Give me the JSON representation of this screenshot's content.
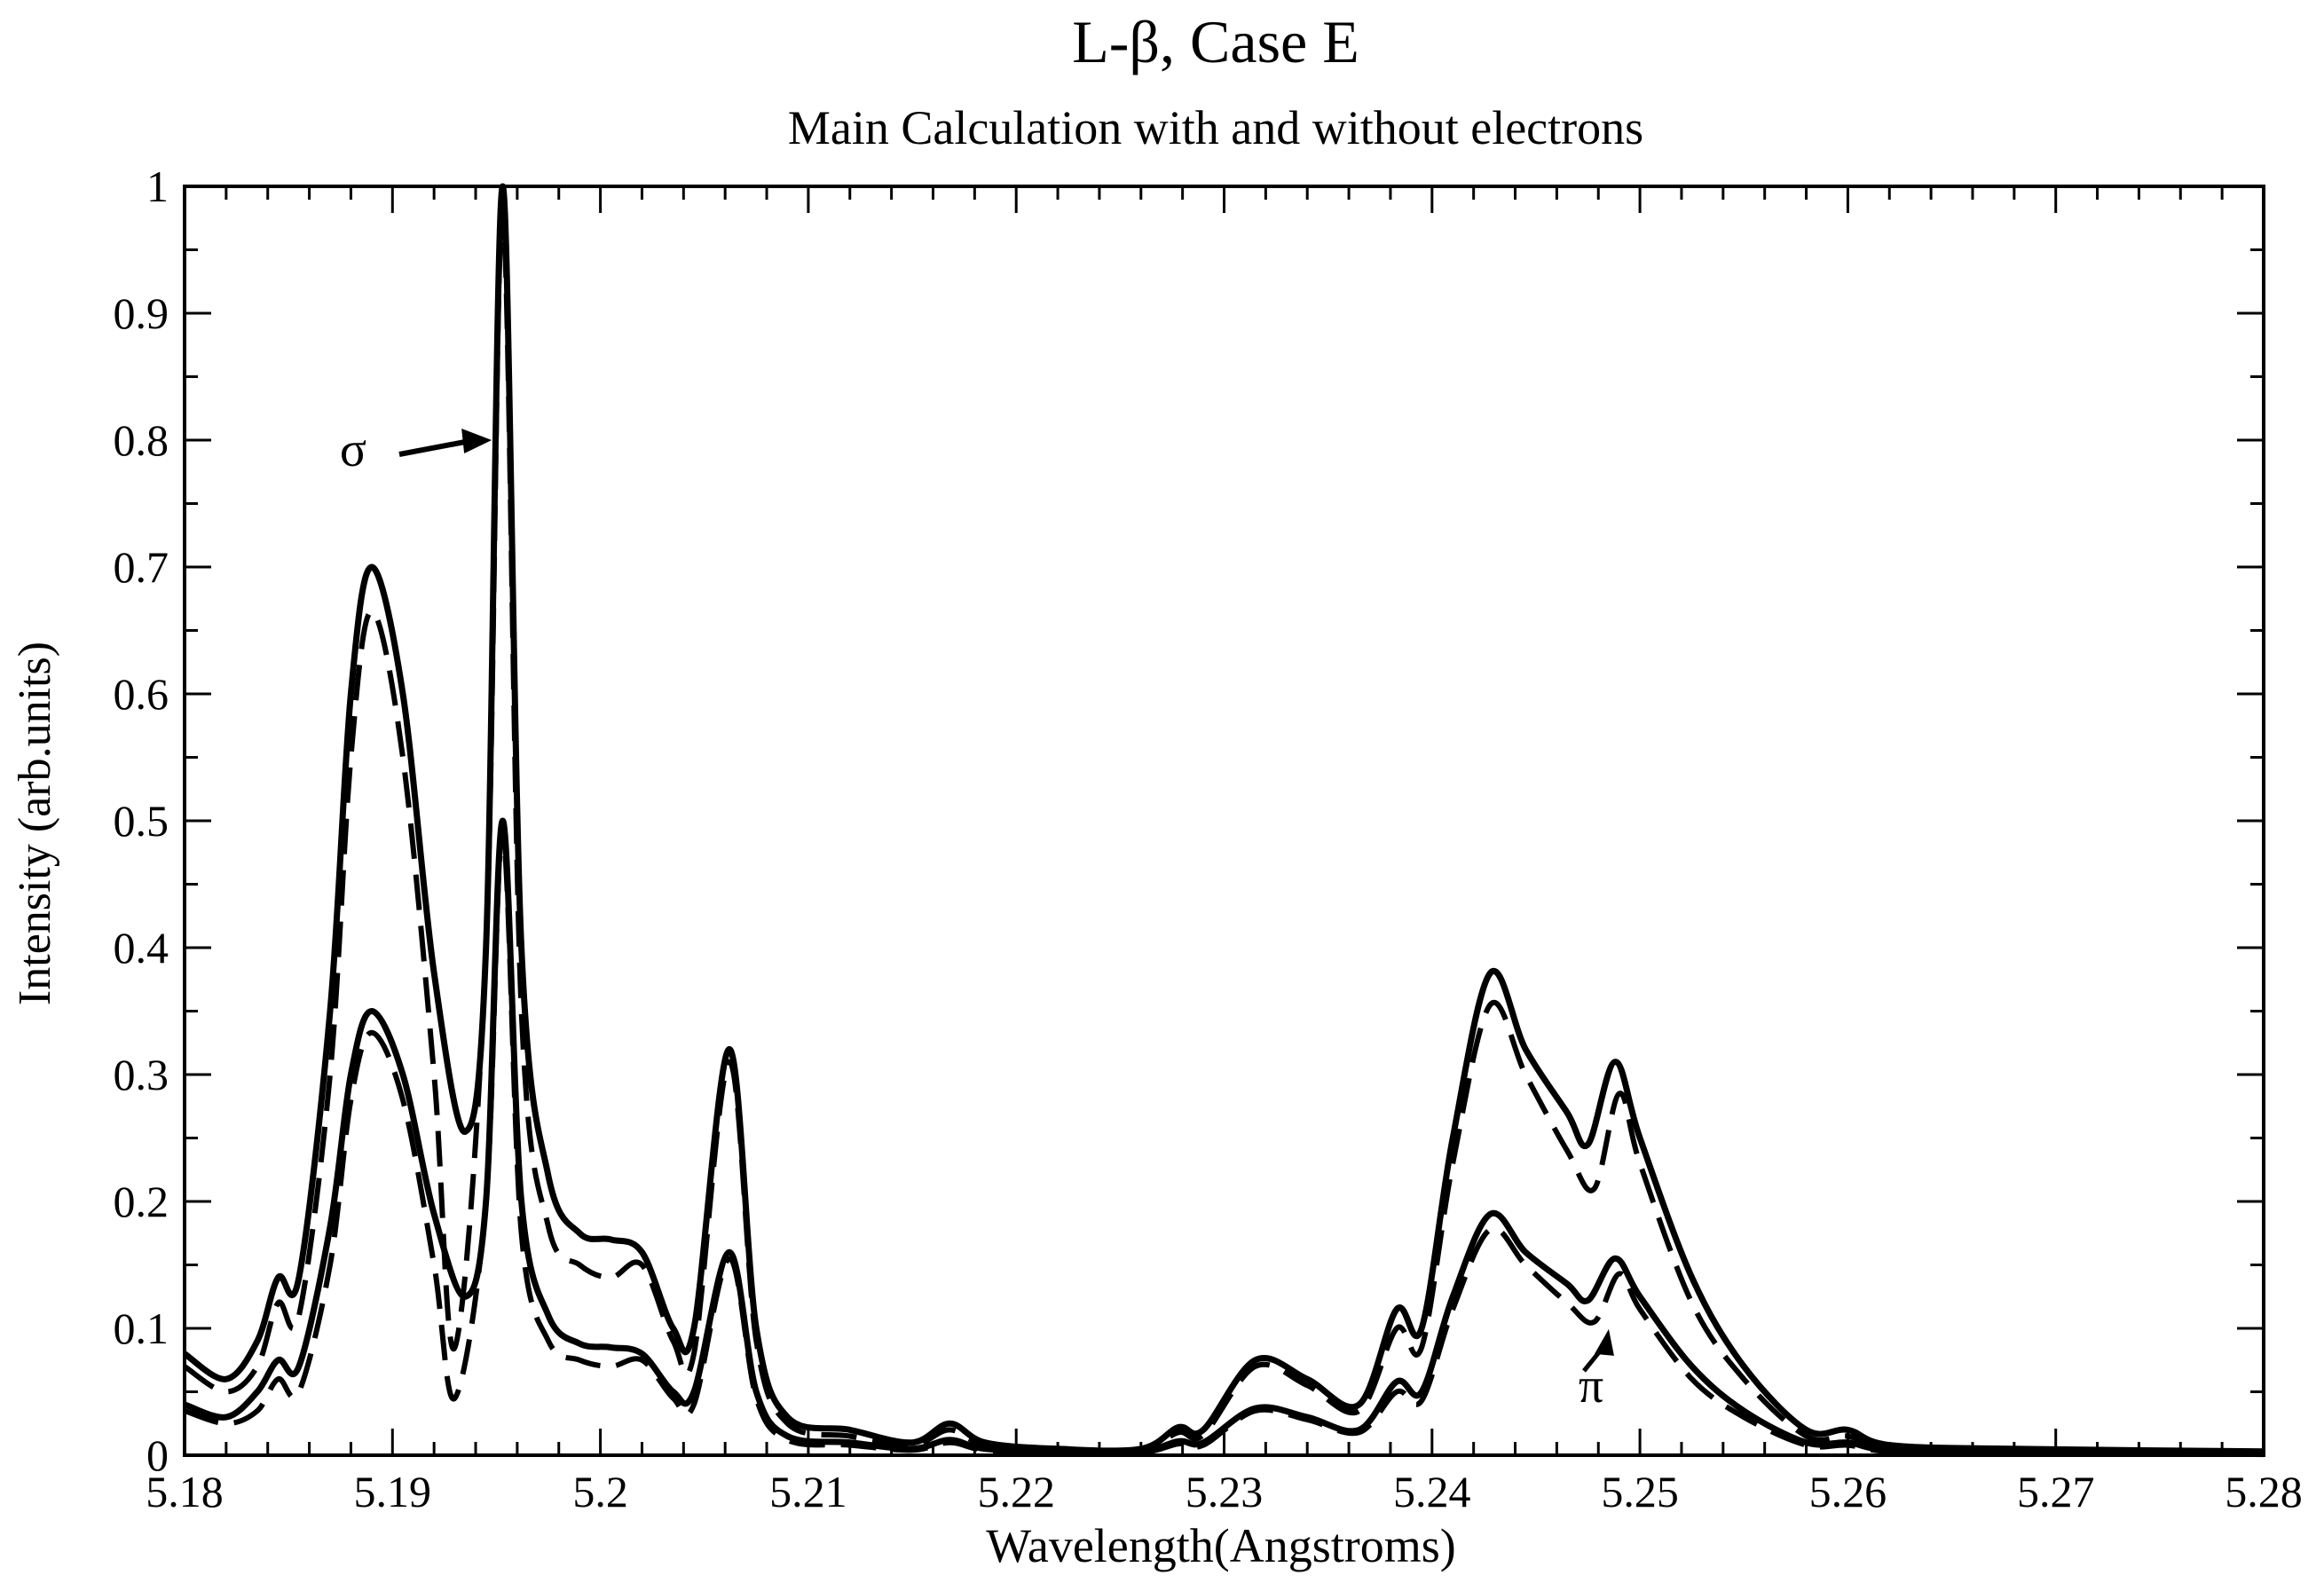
{
  "chart_data": {
    "type": "line",
    "title": "L-β,  Case E",
    "subtitle": "Main Calculation with and without electrons",
    "xlabel": "Wavelength(Angstroms)",
    "ylabel": "Intensity (arb.units)",
    "xlim": [
      5.18,
      5.28
    ],
    "ylim": [
      0,
      1
    ],
    "xticks": [
      5.18,
      5.19,
      5.2,
      5.21,
      5.22,
      5.23,
      5.24,
      5.25,
      5.26,
      5.27,
      5.28
    ],
    "xtick_labels": [
      "5.18",
      "5.19",
      "5.2",
      "5.21",
      "5.22",
      "5.23",
      "5.24",
      "5.25",
      "5.26",
      "5.27",
      "5.28"
    ],
    "yticks": [
      0,
      0.1,
      0.2,
      0.3,
      0.4,
      0.5,
      0.6,
      0.7,
      0.8,
      0.9,
      1
    ],
    "ytick_labels": [
      "0",
      "0.1",
      "0.2",
      "0.3",
      "0.4",
      "0.5",
      "0.6",
      "0.7",
      "0.8",
      "0.9",
      "1"
    ],
    "grid": false,
    "legend": "none",
    "annotations": [
      {
        "text": "σ",
        "points_to": [
          5.1952,
          0.8
        ]
      },
      {
        "text": "π",
        "points_to": [
          5.2485,
          0.105
        ]
      }
    ],
    "series": [
      {
        "style": "solid",
        "points": [
          [
            5.18,
            0.08
          ],
          [
            5.182,
            0.06
          ],
          [
            5.1835,
            0.09
          ],
          [
            5.1845,
            0.14
          ],
          [
            5.1855,
            0.14
          ],
          [
            5.187,
            0.35
          ],
          [
            5.188,
            0.6
          ],
          [
            5.189,
            0.7
          ],
          [
            5.1905,
            0.6
          ],
          [
            5.192,
            0.38
          ],
          [
            5.1935,
            0.255
          ],
          [
            5.1945,
            0.4
          ],
          [
            5.1953,
            1.0
          ],
          [
            5.1962,
            0.4
          ],
          [
            5.1975,
            0.22
          ],
          [
            5.199,
            0.175
          ],
          [
            5.2005,
            0.17
          ],
          [
            5.202,
            0.16
          ],
          [
            5.2035,
            0.1
          ],
          [
            5.2045,
            0.1
          ],
          [
            5.2062,
            0.32
          ],
          [
            5.2075,
            0.1
          ],
          [
            5.209,
            0.03
          ],
          [
            5.212,
            0.02
          ],
          [
            5.215,
            0.01
          ],
          [
            5.2168,
            0.025
          ],
          [
            5.2185,
            0.01
          ],
          [
            5.222,
            0.005
          ],
          [
            5.226,
            0.005
          ],
          [
            5.2278,
            0.022
          ],
          [
            5.229,
            0.02
          ],
          [
            5.2315,
            0.075
          ],
          [
            5.234,
            0.06
          ],
          [
            5.2365,
            0.04
          ],
          [
            5.2383,
            0.115
          ],
          [
            5.2395,
            0.1
          ],
          [
            5.241,
            0.25
          ],
          [
            5.2428,
            0.38
          ],
          [
            5.2445,
            0.32
          ],
          [
            5.2465,
            0.27
          ],
          [
            5.2475,
            0.245
          ],
          [
            5.2488,
            0.31
          ],
          [
            5.25,
            0.25
          ],
          [
            5.2525,
            0.14
          ],
          [
            5.255,
            0.07
          ],
          [
            5.258,
            0.02
          ],
          [
            5.26,
            0.02
          ],
          [
            5.262,
            0.008
          ],
          [
            5.268,
            0.005
          ],
          [
            5.28,
            0.003
          ]
        ]
      },
      {
        "style": "dashed",
        "points": [
          [
            5.18,
            0.07
          ],
          [
            5.182,
            0.05
          ],
          [
            5.1835,
            0.07
          ],
          [
            5.1845,
            0.12
          ],
          [
            5.1855,
            0.11
          ],
          [
            5.187,
            0.3
          ],
          [
            5.188,
            0.55
          ],
          [
            5.189,
            0.665
          ],
          [
            5.1905,
            0.55
          ],
          [
            5.192,
            0.3
          ],
          [
            5.193,
            0.085
          ],
          [
            5.1945,
            0.4
          ],
          [
            5.1953,
            0.98
          ],
          [
            5.1962,
            0.35
          ],
          [
            5.1975,
            0.18
          ],
          [
            5.199,
            0.15
          ],
          [
            5.2005,
            0.14
          ],
          [
            5.202,
            0.15
          ],
          [
            5.2035,
            0.09
          ],
          [
            5.2045,
            0.08
          ],
          [
            5.2062,
            0.31
          ],
          [
            5.2075,
            0.09
          ],
          [
            5.209,
            0.025
          ],
          [
            5.212,
            0.015
          ],
          [
            5.215,
            0.008
          ],
          [
            5.2168,
            0.02
          ],
          [
            5.2185,
            0.008
          ],
          [
            5.222,
            0.004
          ],
          [
            5.226,
            0.004
          ],
          [
            5.2278,
            0.018
          ],
          [
            5.229,
            0.016
          ],
          [
            5.2315,
            0.07
          ],
          [
            5.234,
            0.055
          ],
          [
            5.2365,
            0.035
          ],
          [
            5.2383,
            0.1
          ],
          [
            5.2395,
            0.085
          ],
          [
            5.241,
            0.23
          ],
          [
            5.2428,
            0.355
          ],
          [
            5.2445,
            0.3
          ],
          [
            5.2465,
            0.24
          ],
          [
            5.2478,
            0.21
          ],
          [
            5.249,
            0.285
          ],
          [
            5.25,
            0.23
          ],
          [
            5.2525,
            0.12
          ],
          [
            5.255,
            0.06
          ],
          [
            5.258,
            0.015
          ],
          [
            5.26,
            0.015
          ],
          [
            5.262,
            0.006
          ],
          [
            5.268,
            0.004
          ],
          [
            5.28,
            0.002
          ]
        ]
      },
      {
        "style": "solid",
        "points": [
          [
            5.18,
            0.04
          ],
          [
            5.182,
            0.03
          ],
          [
            5.1835,
            0.05
          ],
          [
            5.1845,
            0.075
          ],
          [
            5.1855,
            0.07
          ],
          [
            5.187,
            0.18
          ],
          [
            5.188,
            0.3
          ],
          [
            5.189,
            0.35
          ],
          [
            5.1905,
            0.3
          ],
          [
            5.192,
            0.19
          ],
          [
            5.1935,
            0.125
          ],
          [
            5.1945,
            0.2
          ],
          [
            5.1953,
            0.5
          ],
          [
            5.1962,
            0.2
          ],
          [
            5.1975,
            0.11
          ],
          [
            5.199,
            0.088
          ],
          [
            5.2005,
            0.085
          ],
          [
            5.202,
            0.08
          ],
          [
            5.2035,
            0.05
          ],
          [
            5.2045,
            0.05
          ],
          [
            5.2062,
            0.16
          ],
          [
            5.2075,
            0.05
          ],
          [
            5.209,
            0.015
          ],
          [
            5.212,
            0.01
          ],
          [
            5.215,
            0.005
          ],
          [
            5.2168,
            0.012
          ],
          [
            5.2185,
            0.005
          ],
          [
            5.222,
            0.003
          ],
          [
            5.226,
            0.003
          ],
          [
            5.2278,
            0.011
          ],
          [
            5.229,
            0.01
          ],
          [
            5.2315,
            0.037
          ],
          [
            5.234,
            0.03
          ],
          [
            5.2365,
            0.02
          ],
          [
            5.2383,
            0.058
          ],
          [
            5.2395,
            0.05
          ],
          [
            5.241,
            0.125
          ],
          [
            5.2428,
            0.19
          ],
          [
            5.2445,
            0.16
          ],
          [
            5.2465,
            0.135
          ],
          [
            5.2475,
            0.122
          ],
          [
            5.2488,
            0.155
          ],
          [
            5.25,
            0.125
          ],
          [
            5.2525,
            0.07
          ],
          [
            5.255,
            0.035
          ],
          [
            5.258,
            0.01
          ],
          [
            5.26,
            0.01
          ],
          [
            5.262,
            0.004
          ],
          [
            5.268,
            0.002
          ],
          [
            5.28,
            0.001
          ]
        ]
      },
      {
        "style": "dashed",
        "points": [
          [
            5.18,
            0.035
          ],
          [
            5.182,
            0.025
          ],
          [
            5.1835,
            0.035
          ],
          [
            5.1845,
            0.06
          ],
          [
            5.1855,
            0.05
          ],
          [
            5.187,
            0.15
          ],
          [
            5.188,
            0.28
          ],
          [
            5.189,
            0.333
          ],
          [
            5.1905,
            0.28
          ],
          [
            5.192,
            0.15
          ],
          [
            5.193,
            0.045
          ],
          [
            5.1945,
            0.2
          ],
          [
            5.1953,
            0.49
          ],
          [
            5.1962,
            0.175
          ],
          [
            5.1975,
            0.09
          ],
          [
            5.199,
            0.075
          ],
          [
            5.2005,
            0.07
          ],
          [
            5.202,
            0.075
          ],
          [
            5.2035,
            0.045
          ],
          [
            5.2045,
            0.04
          ],
          [
            5.2062,
            0.155
          ],
          [
            5.2075,
            0.045
          ],
          [
            5.209,
            0.012
          ],
          [
            5.212,
            0.008
          ],
          [
            5.215,
            0.004
          ],
          [
            5.2168,
            0.01
          ],
          [
            5.2185,
            0.004
          ],
          [
            5.222,
            0.002
          ],
          [
            5.226,
            0.002
          ],
          [
            5.2278,
            0.009
          ],
          [
            5.229,
            0.008
          ],
          [
            5.2315,
            0.035
          ],
          [
            5.234,
            0.028
          ],
          [
            5.2365,
            0.018
          ],
          [
            5.2383,
            0.05
          ],
          [
            5.2395,
            0.043
          ],
          [
            5.241,
            0.115
          ],
          [
            5.2428,
            0.178
          ],
          [
            5.2445,
            0.15
          ],
          [
            5.2465,
            0.12
          ],
          [
            5.2478,
            0.105
          ],
          [
            5.249,
            0.143
          ],
          [
            5.25,
            0.115
          ],
          [
            5.2525,
            0.06
          ],
          [
            5.255,
            0.03
          ],
          [
            5.258,
            0.008
          ],
          [
            5.26,
            0.008
          ],
          [
            5.262,
            0.003
          ],
          [
            5.268,
            0.002
          ],
          [
            5.28,
            0.001
          ]
        ]
      }
    ]
  }
}
